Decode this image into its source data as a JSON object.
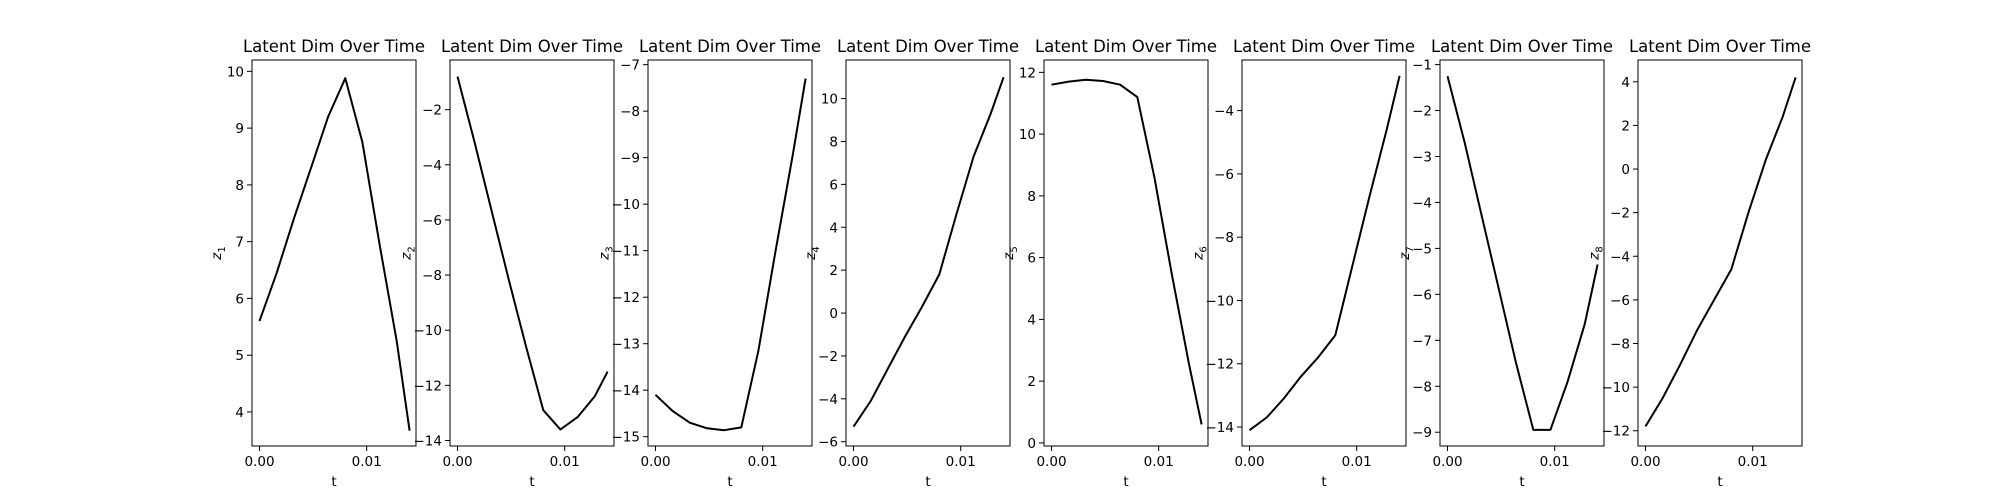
{
  "chart_data": [
    {
      "type": "line",
      "title": "Latent Dim Over Time",
      "xlabel": "t",
      "ylabel": "z",
      "ylabel_sub": "1",
      "xlim": [
        -0.0007,
        0.0146
      ],
      "xticks": [
        0,
        0.01
      ],
      "xtick_labels": [
        "0.00",
        "0.01"
      ],
      "ylim": [
        3.4,
        10.2
      ],
      "yticks": [
        4,
        5,
        6,
        7,
        8,
        9,
        10
      ],
      "ytick_labels": [
        "4",
        "5",
        "6",
        "7",
        "8",
        "9",
        "10"
      ],
      "x": [
        0,
        0.0016,
        0.0032,
        0.0048,
        0.0064,
        0.008,
        0.0096,
        0.0112,
        0.0128,
        0.014
      ],
      "y": [
        5.6,
        6.45,
        7.4,
        8.3,
        9.2,
        9.88,
        8.75,
        6.95,
        5.25,
        3.67
      ]
    },
    {
      "type": "line",
      "title": "Latent Dim Over Time",
      "xlabel": "t",
      "ylabel": "z",
      "ylabel_sub": "2",
      "xlim": [
        -0.0007,
        0.0146
      ],
      "xticks": [
        0,
        0.01
      ],
      "xtick_labels": [
        "0.00",
        "0.01"
      ],
      "ylim": [
        -14.2,
        -0.2
      ],
      "yticks": [
        -14,
        -12,
        -10,
        -8,
        -6,
        -4,
        -2
      ],
      "ytick_labels": [
        "−14",
        "−12",
        "−10",
        "−8",
        "−6",
        "−4",
        "−2"
      ],
      "x": [
        0,
        0.0016,
        0.0032,
        0.0048,
        0.0064,
        0.008,
        0.0096,
        0.0112,
        0.0128,
        0.014
      ],
      "y": [
        -0.8,
        -3.2,
        -5.7,
        -8.2,
        -10.6,
        -12.9,
        -13.6,
        -13.15,
        -12.4,
        -11.5
      ]
    },
    {
      "type": "line",
      "title": "Latent Dim Over Time",
      "xlabel": "t",
      "ylabel": "z",
      "ylabel_sub": "3",
      "xlim": [
        -0.0007,
        0.0146
      ],
      "xticks": [
        0,
        0.01
      ],
      "xtick_labels": [
        "0.00",
        "0.01"
      ],
      "ylim": [
        -15.2,
        -6.9
      ],
      "yticks": [
        -15,
        -14,
        -13,
        -12,
        -11,
        -10,
        -9,
        -8,
        -7
      ],
      "ytick_labels": [
        "−15",
        "−14",
        "−13",
        "−12",
        "−11",
        "−10",
        "−9",
        "−8",
        "−7"
      ],
      "x": [
        0,
        0.0016,
        0.0032,
        0.0048,
        0.0064,
        0.008,
        0.0096,
        0.0112,
        0.0128,
        0.014
      ],
      "y": [
        -14.1,
        -14.45,
        -14.7,
        -14.82,
        -14.86,
        -14.8,
        -13.15,
        -11.0,
        -8.95,
        -7.3
      ]
    },
    {
      "type": "line",
      "title": "Latent Dim Over Time",
      "xlabel": "t",
      "ylabel": "z",
      "ylabel_sub": "4",
      "xlim": [
        -0.0007,
        0.0146
      ],
      "xticks": [
        0,
        0.01
      ],
      "xtick_labels": [
        "0.00",
        "0.01"
      ],
      "ylim": [
        -6.2,
        11.8
      ],
      "yticks": [
        -6,
        -4,
        -2,
        0,
        2,
        4,
        6,
        8,
        10
      ],
      "ytick_labels": [
        "−6",
        "−4",
        "−2",
        "0",
        "2",
        "4",
        "6",
        "8",
        "10"
      ],
      "x": [
        0,
        0.0016,
        0.0032,
        0.0048,
        0.0064,
        0.008,
        0.0096,
        0.0112,
        0.0128,
        0.014
      ],
      "y": [
        -5.3,
        -4.1,
        -2.6,
        -1.1,
        0.3,
        1.8,
        4.6,
        7.3,
        9.3,
        11.0
      ]
    },
    {
      "type": "line",
      "title": "Latent Dim Over Time",
      "xlabel": "t",
      "ylabel": "z",
      "ylabel_sub": "5",
      "xlim": [
        -0.0007,
        0.0146
      ],
      "xticks": [
        0,
        0.01
      ],
      "xtick_labels": [
        "0.00",
        "0.01"
      ],
      "ylim": [
        -0.1,
        12.4
      ],
      "yticks": [
        0,
        2,
        4,
        6,
        8,
        10,
        12
      ],
      "ytick_labels": [
        "0",
        "2",
        "4",
        "6",
        "8",
        "10",
        "12"
      ],
      "x": [
        0,
        0.0016,
        0.0032,
        0.0048,
        0.0064,
        0.008,
        0.0096,
        0.0112,
        0.0128,
        0.014
      ],
      "y": [
        11.6,
        11.7,
        11.76,
        11.72,
        11.6,
        11.2,
        8.6,
        5.5,
        2.6,
        0.6
      ]
    },
    {
      "type": "line",
      "title": "Latent Dim Over Time",
      "xlabel": "t",
      "ylabel": "z",
      "ylabel_sub": "6",
      "xlim": [
        -0.0007,
        0.0146
      ],
      "xticks": [
        0,
        0.01
      ],
      "xtick_labels": [
        "0.00",
        "0.01"
      ],
      "ylim": [
        -14.6,
        -2.4
      ],
      "yticks": [
        -14,
        -12,
        -10,
        -8,
        -6,
        -4
      ],
      "ytick_labels": [
        "−14",
        "−12",
        "−10",
        "−8",
        "−6",
        "−4"
      ],
      "x": [
        0,
        0.0016,
        0.0032,
        0.0048,
        0.0064,
        0.008,
        0.0096,
        0.0112,
        0.0128,
        0.014
      ],
      "y": [
        -14.1,
        -13.7,
        -13.1,
        -12.4,
        -11.8,
        -11.1,
        -8.9,
        -6.7,
        -4.6,
        -2.9
      ]
    },
    {
      "type": "line",
      "title": "Latent Dim Over Time",
      "xlabel": "t",
      "ylabel": "z",
      "ylabel_sub": "7",
      "xlim": [
        -0.0007,
        0.0146
      ],
      "xticks": [
        0,
        0.01
      ],
      "xtick_labels": [
        "0.00",
        "0.01"
      ],
      "ylim": [
        -9.3,
        -0.9
      ],
      "yticks": [
        -9,
        -8,
        -7,
        -6,
        -5,
        -4,
        -3,
        -2,
        -1
      ],
      "ytick_labels": [
        "−9",
        "−8",
        "−7",
        "−6",
        "−5",
        "−4",
        "−3",
        "−2",
        "−1"
      ],
      "x": [
        0,
        0.0016,
        0.0032,
        0.0048,
        0.0064,
        0.008,
        0.0096,
        0.0112,
        0.0128,
        0.014
      ],
      "y": [
        -1.25,
        -2.7,
        -4.3,
        -5.9,
        -7.5,
        -8.95,
        -8.95,
        -7.9,
        -6.65,
        -5.35
      ]
    },
    {
      "type": "line",
      "title": "Latent Dim Over Time",
      "xlabel": "t",
      "ylabel": "z",
      "ylabel_sub": "8",
      "xlim": [
        -0.0007,
        0.0146
      ],
      "xticks": [
        0,
        0.01
      ],
      "xtick_labels": [
        "0.00",
        "0.01"
      ],
      "ylim": [
        -12.7,
        5.0
      ],
      "yticks": [
        -12,
        -10,
        -8,
        -6,
        -4,
        -2,
        0,
        2,
        4
      ],
      "ytick_labels": [
        "−12",
        "−10",
        "−8",
        "−6",
        "−4",
        "−2",
        "0",
        "2",
        "4"
      ],
      "x": [
        0,
        0.0016,
        0.0032,
        0.0048,
        0.0064,
        0.008,
        0.0096,
        0.0112,
        0.0128,
        0.014
      ],
      "y": [
        -11.8,
        -10.5,
        -9.0,
        -7.4,
        -6.0,
        -4.6,
        -2.0,
        0.4,
        2.4,
        4.2
      ]
    }
  ]
}
